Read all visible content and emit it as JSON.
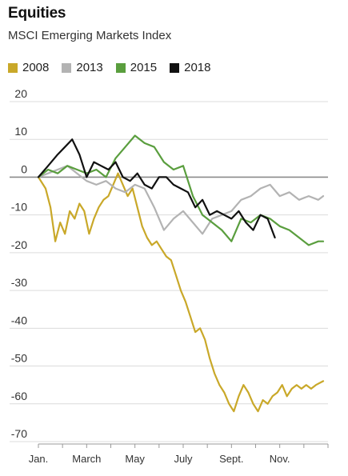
{
  "chart_data": {
    "type": "line",
    "title": "Equities",
    "subtitle": "MSCI Emerging Markets Index",
    "xlabel": "",
    "ylabel": "",
    "ylim": [
      -70,
      20
    ],
    "yticks": [
      20,
      10,
      0,
      -10,
      -20,
      -30,
      -40,
      -50,
      -60,
      -70
    ],
    "xtick_labels": [
      "Jan.",
      "March",
      "May",
      "July",
      "Sept.",
      "Nov."
    ],
    "grid": true,
    "legend": "top-left",
    "series": [
      {
        "name": "2008",
        "color": "#c9a829",
        "x": [
          0,
          0.3,
          0.5,
          0.7,
          0.9,
          1.1,
          1.3,
          1.5,
          1.7,
          1.9,
          2.1,
          2.3,
          2.5,
          2.7,
          2.9,
          3.1,
          3.3,
          3.5,
          3.7,
          3.9,
          4.1,
          4.3,
          4.5,
          4.7,
          4.9,
          5.1,
          5.3,
          5.5,
          5.7,
          5.9,
          6.1,
          6.3,
          6.5,
          6.7,
          6.9,
          7.1,
          7.3,
          7.5,
          7.7,
          7.9,
          8.1,
          8.3,
          8.5,
          8.7,
          8.9,
          9.1,
          9.3,
          9.5,
          9.7,
          9.9,
          10.1,
          10.3,
          10.5,
          10.7,
          10.9,
          11.1,
          11.3,
          11.5,
          11.8
        ],
        "values": [
          0,
          -3,
          -8,
          -17,
          -12,
          -15,
          -9,
          -11,
          -7,
          -9,
          -15,
          -11,
          -8,
          -6,
          -5,
          -2,
          1,
          -2,
          -5,
          -3,
          -8,
          -13,
          -16,
          -18,
          -17,
          -19,
          -21,
          -22,
          -26,
          -30,
          -33,
          -37,
          -41,
          -40,
          -43,
          -48,
          -52,
          -55,
          -57,
          -60,
          -62,
          -58,
          -55,
          -57,
          -60,
          -62,
          -59,
          -60,
          -58,
          -57,
          -55,
          -58,
          -56,
          -55,
          -56,
          -55,
          -56,
          -55,
          -54
        ]
      },
      {
        "name": "2013",
        "color": "#b3b3b3",
        "x": [
          0,
          0.4,
          0.8,
          1.2,
          1.6,
          2.0,
          2.4,
          2.8,
          3.2,
          3.6,
          4.0,
          4.4,
          4.8,
          5.2,
          5.6,
          6.0,
          6.4,
          6.8,
          7.2,
          7.6,
          8.0,
          8.4,
          8.8,
          9.2,
          9.6,
          10.0,
          10.4,
          10.8,
          11.2,
          11.6,
          11.8
        ],
        "values": [
          0,
          1,
          2,
          3,
          1,
          -1,
          -2,
          -1,
          -3,
          -4,
          -2,
          -3,
          -8,
          -14,
          -11,
          -9,
          -12,
          -15,
          -11,
          -10,
          -9,
          -6,
          -5,
          -3,
          -2,
          -5,
          -4,
          -6,
          -5,
          -6,
          -5
        ]
      },
      {
        "name": "2015",
        "color": "#5a9e3e",
        "x": [
          0,
          0.4,
          0.8,
          1.2,
          1.6,
          2.0,
          2.4,
          2.8,
          3.2,
          3.6,
          4.0,
          4.4,
          4.8,
          5.2,
          5.6,
          6.0,
          6.4,
          6.8,
          7.2,
          7.6,
          8.0,
          8.4,
          8.8,
          9.2,
          9.6,
          10.0,
          10.4,
          10.8,
          11.2,
          11.6,
          11.8
        ],
        "values": [
          0,
          2,
          1,
          3,
          2,
          1,
          2,
          0,
          5,
          8,
          11,
          9,
          8,
          4,
          2,
          3,
          -5,
          -10,
          -12,
          -14,
          -17,
          -11,
          -12,
          -10,
          -11,
          -13,
          -14,
          -16,
          -18,
          -17,
          -17
        ]
      },
      {
        "name": "2018",
        "color": "#111111",
        "x": [
          0,
          0.4,
          0.8,
          1.1,
          1.4,
          1.7,
          2.0,
          2.3,
          2.6,
          2.9,
          3.2,
          3.5,
          3.8,
          4.1,
          4.4,
          4.7,
          5.0,
          5.3,
          5.6,
          5.9,
          6.2,
          6.5,
          6.8,
          7.1,
          7.4,
          7.7,
          8.0,
          8.3,
          8.6,
          8.9,
          9.2,
          9.5,
          9.8
        ],
        "values": [
          0,
          3,
          6,
          8,
          10,
          6,
          0,
          4,
          3,
          2,
          4,
          0,
          -1,
          1,
          -2,
          -3,
          0,
          0,
          -2,
          -3,
          -4,
          -8,
          -6,
          -10,
          -9,
          -10,
          -11,
          -9,
          -12,
          -14,
          -10,
          -11,
          -16
        ]
      }
    ]
  }
}
